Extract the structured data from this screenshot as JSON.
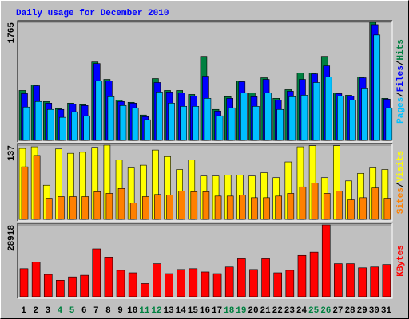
{
  "title": "Daily usage for December 2010",
  "chart_data": [
    {
      "type": "bar",
      "ylim": [
        0,
        1765
      ],
      "yticks": [
        1765
      ],
      "series": [
        {
          "name": "Hits",
          "color": "#008040",
          "values": [
            746,
            829,
            580,
            474,
            557,
            533,
            1173,
            912,
            604,
            569,
            379,
            924,
            746,
            746,
            687,
            1256,
            462,
            652,
            888,
            711,
            936,
            628,
            758,
            1007,
            1007,
            1256,
            711,
            675,
            948,
            1765,
            628
          ]
        },
        {
          "name": "Files",
          "color": "#0000ff",
          "values": [
            699,
            817,
            557,
            462,
            545,
            521,
            1149,
            889,
            581,
            557,
            355,
            865,
            723,
            711,
            664,
            960,
            438,
            628,
            877,
            652,
            912,
            604,
            735,
            912,
            995,
            1114,
            699,
            664,
            936,
            1730,
            616
          ]
        },
        {
          "name": "Pages",
          "color": "#00c0ff",
          "values": [
            498,
            581,
            462,
            344,
            427,
            367,
            889,
            652,
            521,
            486,
            308,
            723,
            557,
            509,
            509,
            628,
            367,
            486,
            711,
            509,
            711,
            462,
            652,
            675,
            865,
            948,
            664,
            604,
            782,
            1576,
            486
          ]
        }
      ]
    },
    {
      "type": "bar",
      "ylim": [
        0,
        137
      ],
      "yticks": [
        137
      ],
      "series": [
        {
          "name": "Visits",
          "color": "#ffff00",
          "values": [
            131,
            134,
            63,
            130,
            122,
            124,
            133,
            137,
            110,
            95,
            100,
            128,
            116,
            92,
            110,
            80,
            80,
            82,
            82,
            80,
            86,
            77,
            106,
            134,
            136,
            77,
            136,
            71,
            85,
            95,
            92
          ]
        },
        {
          "name": "Sites",
          "color": "#ff8000",
          "values": [
            97,
            118,
            39,
            42,
            42,
            42,
            51,
            48,
            57,
            30,
            42,
            46,
            45,
            52,
            51,
            51,
            43,
            43,
            45,
            40,
            40,
            43,
            48,
            60,
            67,
            48,
            52,
            36,
            40,
            58,
            39
          ]
        }
      ]
    },
    {
      "type": "bar",
      "ylim": [
        0,
        28918
      ],
      "yticks": [
        28918
      ],
      "categories": [
        1,
        2,
        3,
        4,
        5,
        6,
        7,
        8,
        9,
        10,
        11,
        12,
        13,
        14,
        15,
        16,
        17,
        18,
        19,
        20,
        21,
        22,
        23,
        24,
        25,
        26,
        27,
        28,
        29,
        30,
        31
      ],
      "category_colors": [
        "#000000",
        "#000000",
        "#000000",
        "#008040",
        "#008040",
        "#000000",
        "#000000",
        "#000000",
        "#000000",
        "#000000",
        "#008040",
        "#008040",
        "#000000",
        "#000000",
        "#000000",
        "#000000",
        "#000000",
        "#008040",
        "#008040",
        "#000000",
        "#000000",
        "#000000",
        "#000000",
        "#000000",
        "#008040",
        "#008040",
        "#000000",
        "#000000",
        "#000000",
        "#000000",
        "#000000"
      ],
      "series": [
        {
          "name": "KBytes",
          "color": "#ff0000",
          "values": [
            11302,
            13961,
            8975,
            6648,
            7978,
            8642,
            19279,
            15955,
            10637,
            9640,
            5318,
            13296,
            9307,
            10969,
            11302,
            9972,
            9307,
            11966,
            15290,
            10969,
            15290,
            9640,
            10637,
            16620,
            17950,
            28918,
            13296,
            13296,
            11634,
            11966,
            12964
          ]
        }
      ]
    }
  ]
}
